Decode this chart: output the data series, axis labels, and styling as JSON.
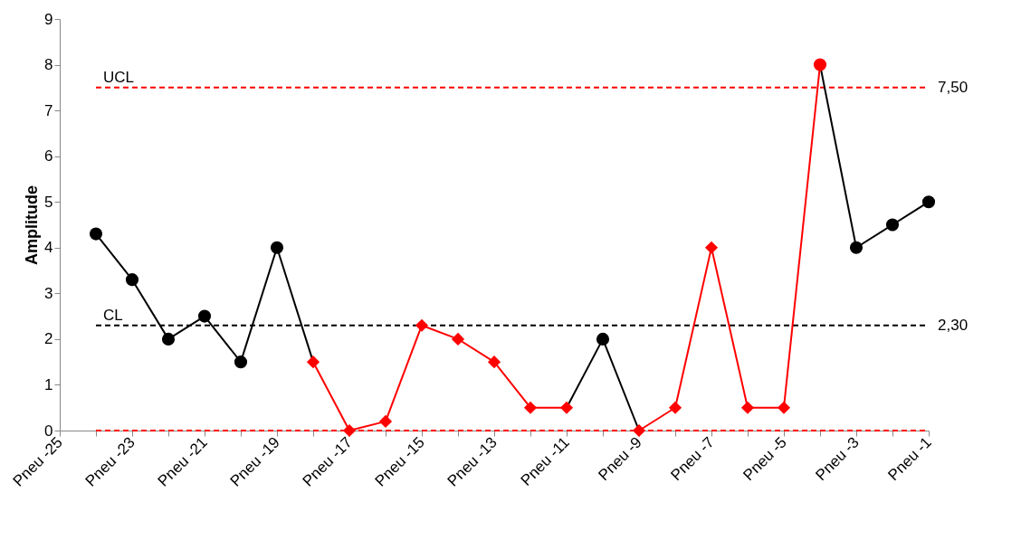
{
  "chart_data": {
    "type": "line",
    "ylabel": "Amplitude",
    "categories": [
      "Pneu -25",
      null,
      "Pneu -23",
      null,
      "Pneu -21",
      null,
      "Pneu -19",
      null,
      "Pneu -17",
      null,
      "Pneu -15",
      null,
      "Pneu -13",
      null,
      "Pneu -11",
      null,
      "Pneu -9",
      null,
      "Pneu -7",
      null,
      "Pneu -5",
      null,
      "Pneu -3",
      null,
      "Pneu -1"
    ],
    "ylim": [
      0,
      9
    ],
    "yticks": [
      0,
      1,
      2,
      3,
      4,
      5,
      6,
      7,
      8,
      9
    ],
    "grid": false,
    "series": [
      {
        "type": "line",
        "marker": "none",
        "color": "#000000",
        "values": [
          null,
          4.3,
          3.3,
          2.0,
          2.5,
          1.5,
          4.0,
          1.5,
          null,
          null,
          null,
          null,
          null,
          null,
          0.5,
          2.0,
          0,
          null,
          null,
          null,
          null,
          8,
          4.0,
          4.5,
          5.0
        ]
      },
      {
        "type": "line",
        "marker": "none",
        "color": "#ff0000",
        "values": [
          null,
          null,
          null,
          null,
          null,
          null,
          null,
          1.5,
          0,
          0.2,
          2.3,
          2.0,
          1.5,
          0.5,
          0.5,
          null,
          0,
          0.5,
          4.0,
          0.5,
          0.5,
          8,
          null,
          null,
          null
        ]
      },
      {
        "type": "scatter",
        "marker": "circle",
        "color": "#000000",
        "values": [
          null,
          4.3,
          3.3,
          2.0,
          2.5,
          1.5,
          4.0,
          null,
          null,
          null,
          null,
          null,
          null,
          null,
          null,
          2.0,
          null,
          null,
          null,
          null,
          null,
          null,
          4.0,
          4.5,
          5.0
        ]
      },
      {
        "type": "scatter",
        "marker": "diamond",
        "color": "#ff0000",
        "values": [
          null,
          null,
          null,
          null,
          null,
          null,
          null,
          1.5,
          0,
          0.2,
          2.3,
          2.0,
          1.5,
          0.5,
          0.5,
          null,
          0,
          0.5,
          4.0,
          0.5,
          0.5,
          null,
          null,
          null,
          null
        ]
      },
      {
        "type": "scatter",
        "marker": "circle",
        "color": "#ff0000",
        "values": [
          null,
          null,
          null,
          null,
          null,
          null,
          null,
          null,
          null,
          null,
          null,
          null,
          null,
          null,
          null,
          null,
          null,
          null,
          null,
          null,
          null,
          8,
          null,
          null,
          null
        ]
      }
    ],
    "ref_lines": [
      {
        "axis": "y",
        "value": 7.5,
        "label": "UCL",
        "color": "#ff0000",
        "line_style": "dashed"
      },
      {
        "axis": "y",
        "value": 2.3,
        "label": "CL",
        "color": "#000000",
        "line_style": "dashed"
      },
      {
        "axis": "y",
        "value": 0,
        "color": "#ff0000",
        "line_style": "dashed"
      }
    ],
    "annotations": [
      {
        "text": "7,50",
        "x": "Pneu -1",
        "y": 7.5
      },
      {
        "text": "2,30",
        "x": "Pneu -1",
        "y": 2.3
      }
    ]
  }
}
